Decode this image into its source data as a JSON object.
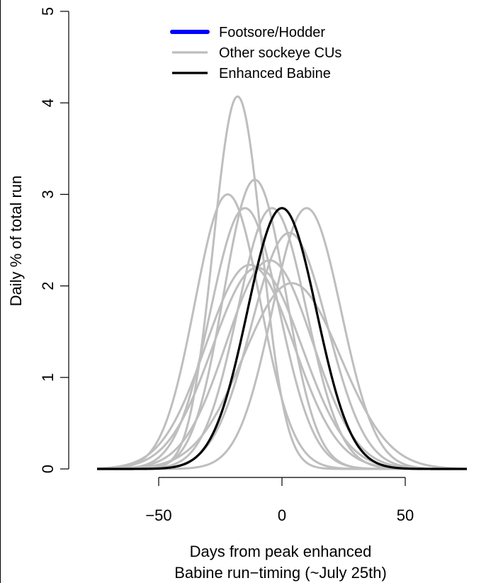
{
  "chart_data": {
    "type": "line",
    "title": "",
    "xlabel_lines": [
      "Days from peak enhanced",
      "Babine run−timing (~July 25th)"
    ],
    "ylabel": "Daily % of total run",
    "xlim": [
      -75,
      75
    ],
    "ylim": [
      0,
      5
    ],
    "x_ticks": [
      {
        "value": -50,
        "label": "−50"
      },
      {
        "value": 0,
        "label": "0"
      },
      {
        "value": 50,
        "label": "50"
      }
    ],
    "y_ticks": [
      {
        "value": 0,
        "label": "0"
      },
      {
        "value": 1,
        "label": "1"
      },
      {
        "value": 2,
        "label": "2"
      },
      {
        "value": 3,
        "label": "3"
      },
      {
        "value": 4,
        "label": "4"
      },
      {
        "value": 5,
        "label": "5"
      }
    ],
    "grid": false,
    "legend_position": "top",
    "legend": [
      {
        "label": "Footsore/Hodder",
        "color": "#0000ff"
      },
      {
        "label": "Other sockeye CUs",
        "color": "#bebebe"
      },
      {
        "label": "Enhanced Babine",
        "color": "#000000"
      }
    ],
    "series": [
      {
        "group": "Other sockeye CUs",
        "color": "#bebebe",
        "peak_x": -18,
        "peak_y": 4.07
      },
      {
        "group": "Other sockeye CUs",
        "color": "#bebebe",
        "peak_x": -22,
        "peak_y": 3.0
      },
      {
        "group": "Other sockeye CUs",
        "color": "#bebebe",
        "peak_x": -11,
        "peak_y": 3.16
      },
      {
        "group": "Other sockeye CUs",
        "color": "#bebebe",
        "peak_x": -15,
        "peak_y": 2.85
      },
      {
        "group": "Other sockeye CUs",
        "color": "#bebebe",
        "peak_x": -4,
        "peak_y": 2.85
      },
      {
        "group": "Other sockeye CUs",
        "color": "#bebebe",
        "peak_x": 10,
        "peak_y": 2.85
      },
      {
        "group": "Other sockeye CUs",
        "color": "#bebebe",
        "peak_x": 3,
        "peak_y": 2.58
      },
      {
        "group": "Other sockeye CUs",
        "color": "#bebebe",
        "peak_x": -13,
        "peak_y": 2.23
      },
      {
        "group": "Other sockeye CUs",
        "color": "#bebebe",
        "peak_x": -10,
        "peak_y": 2.2
      },
      {
        "group": "Other sockeye CUs",
        "color": "#bebebe",
        "peak_x": -5,
        "peak_y": 2.28
      },
      {
        "group": "Other sockeye CUs",
        "color": "#bebebe",
        "peak_x": 4,
        "peak_y": 2.03
      },
      {
        "group": "Enhanced Babine",
        "color": "#000000",
        "peak_x": 0,
        "peak_y": 2.85
      }
    ]
  }
}
